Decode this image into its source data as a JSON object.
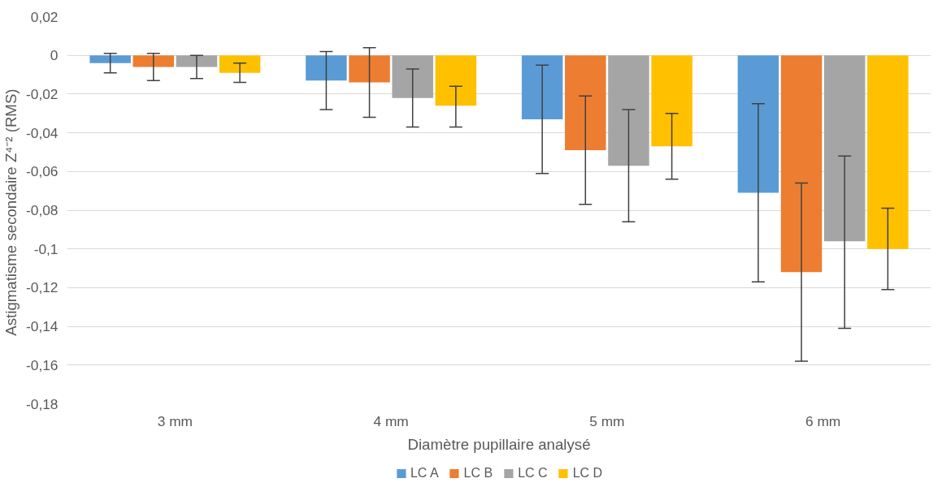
{
  "chart_data": {
    "type": "bar",
    "xlabel": "Diamètre pupillaire analysé",
    "ylabel": "Astigmatisme secondaire  Z⁴⁻² (RMS)",
    "categories": [
      "3 mm",
      "4 mm",
      "5 mm",
      "6 mm"
    ],
    "series": [
      {
        "name": "LC A",
        "color": "#5b9bd5",
        "values": [
          -0.004,
          -0.013,
          -0.033,
          -0.071
        ],
        "errors": [
          [
            -0.009,
            0.001
          ],
          [
            -0.028,
            0.002
          ],
          [
            -0.061,
            -0.005
          ],
          [
            -0.117,
            -0.025
          ]
        ]
      },
      {
        "name": "LC B",
        "color": "#ed7d31",
        "values": [
          -0.006,
          -0.014,
          -0.049,
          -0.112
        ],
        "errors": [
          [
            -0.013,
            0.001
          ],
          [
            -0.032,
            0.004
          ],
          [
            -0.077,
            -0.021
          ],
          [
            -0.158,
            -0.066
          ]
        ]
      },
      {
        "name": "LC C",
        "color": "#a5a5a5",
        "values": [
          -0.006,
          -0.022,
          -0.057,
          -0.096
        ],
        "errors": [
          [
            -0.012,
            0.0
          ],
          [
            -0.037,
            -0.007
          ],
          [
            -0.086,
            -0.028
          ],
          [
            -0.141,
            -0.052
          ]
        ]
      },
      {
        "name": "LC D",
        "color": "#ffc000",
        "values": [
          -0.009,
          -0.026,
          -0.047,
          -0.1
        ],
        "errors": [
          [
            -0.014,
            -0.004
          ],
          [
            -0.037,
            -0.016
          ],
          [
            -0.064,
            -0.03
          ],
          [
            -0.121,
            -0.079
          ]
        ]
      }
    ],
    "ylim": [
      -0.18,
      0.02
    ],
    "yticks": [
      {
        "value": -0.18,
        "label": "-0,18"
      },
      {
        "value": -0.16,
        "label": "-0,16"
      },
      {
        "value": -0.14,
        "label": "-0,14"
      },
      {
        "value": -0.12,
        "label": "-0,12"
      },
      {
        "value": -0.1,
        "label": "-0,1"
      },
      {
        "value": -0.08,
        "label": "-0,08"
      },
      {
        "value": -0.06,
        "label": "-0,06"
      },
      {
        "value": -0.04,
        "label": "-0,04"
      },
      {
        "value": -0.02,
        "label": "-0,02"
      },
      0,
      {
        "value": 0.02,
        "label": "0,02"
      }
    ],
    "grid": "y",
    "legend": "bottom"
  }
}
